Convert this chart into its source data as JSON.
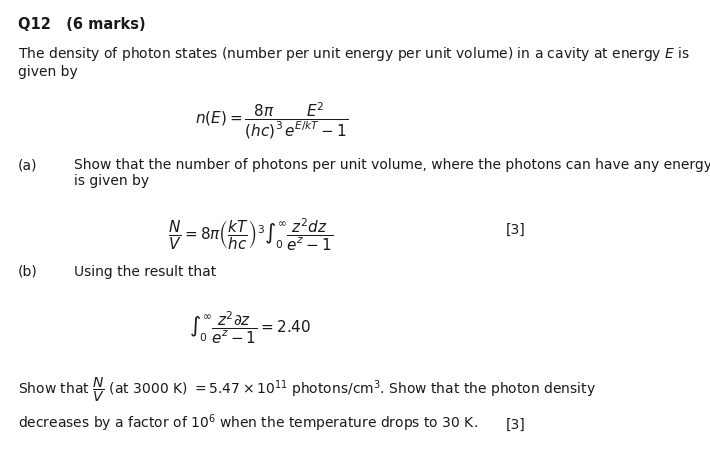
{
  "bg_color": "#ffffff",
  "text_color": "#1a1a1a",
  "title": "Q12   (6 marks)",
  "intro": "The density of photon states (number per unit energy per unit volume) in a cavity at energy $E$ is\ngiven by",
  "eq1": "$n(E) = \\dfrac{8\\pi}{(hc)^3} \\dfrac{E^2}{e^{E/kT} - 1}$",
  "part_a_label": "(a)",
  "part_a_text": "Show that the number of photons per unit volume, where the photons can have any energy,\nis given by",
  "eq2": "$\\dfrac{N}{V} = 8\\pi\\left(\\dfrac{kT}{hc}\\right)^3 \\int_0^{\\infty} \\dfrac{z^2 dz}{e^z - 1}$",
  "mark_a": "[3]",
  "part_b_label": "(b)",
  "part_b_text": "Using the result that",
  "eq3": "$\\int_0^{\\infty} \\dfrac{z^2 \\partial z}{e^z - 1} = 2.40$",
  "part_b_show": "Show that $\\dfrac{N}{V}$ (at 3000 K) $= 5.47 \\times 10^{11}$ photons/cm$^3$. Show that the photon density",
  "part_b_show2": "decreases by a factor of $10^6$ when the temperature drops to 30 K.",
  "mark_b": "[3]"
}
